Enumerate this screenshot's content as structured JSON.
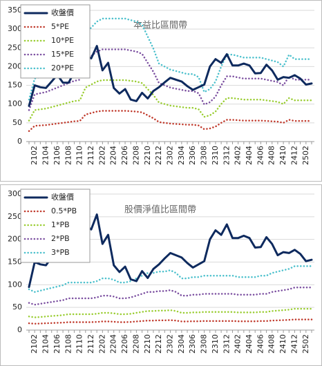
{
  "chart_data": [
    {
      "type": "line",
      "title": "本益比區間帶",
      "categories": [
        null,
        "2102",
        null,
        "2104",
        null,
        "2106",
        null,
        "2108",
        null,
        "2110",
        null,
        "2112",
        null,
        "2202",
        null,
        "2204",
        null,
        "2206",
        null,
        "2208",
        null,
        "2210",
        null,
        "2212",
        null,
        "2302",
        null,
        "2304",
        null,
        "2306",
        null,
        "2308",
        null,
        "2310",
        null,
        "2312",
        null,
        "2402",
        null,
        "2404",
        null,
        "2406",
        null,
        "2408",
        null,
        "2410",
        null,
        "2412",
        null,
        "2502",
        null
      ],
      "ylim": [
        0,
        350
      ],
      "yticks": [
        0,
        50,
        100,
        150,
        200,
        250,
        300,
        350
      ],
      "grid": true,
      "legend": "upper left",
      "series": [
        {
          "name": "收盤價",
          "color": "#0e2a5e",
          "style": "solid",
          "values": [
            95,
            150,
            145,
            143,
            160,
            178,
            157,
            157,
            185,
            195,
            230,
            222,
            255,
            190,
            210,
            143,
            128,
            140,
            112,
            108,
            130,
            115,
            135,
            145,
            158,
            170,
            165,
            160,
            148,
            138,
            145,
            152,
            200,
            220,
            210,
            233,
            203,
            203,
            208,
            203,
            182,
            183,
            205,
            190,
            165,
            172,
            170,
            177,
            168,
            152,
            155
          ]
        },
        {
          "name": "5*PE",
          "color": "#c0392b",
          "style": "dotted",
          "values": [
            28,
            42,
            43,
            44,
            46,
            48,
            50,
            52,
            54,
            55,
            72,
            76,
            80,
            82,
            82,
            82,
            82,
            82,
            81,
            80,
            78,
            70,
            62,
            52,
            50,
            48,
            47,
            46,
            45,
            45,
            43,
            33,
            35,
            40,
            50,
            58,
            58,
            57,
            56,
            56,
            56,
            56,
            55,
            54,
            53,
            50,
            58,
            55,
            55,
            55,
            55
          ]
        },
        {
          "name": "10*PE",
          "color": "#9acd32",
          "style": "dotted",
          "values": [
            56,
            84,
            86,
            88,
            92,
            96,
            100,
            104,
            108,
            110,
            144,
            152,
            160,
            164,
            164,
            164,
            164,
            164,
            162,
            160,
            156,
            140,
            124,
            104,
            100,
            96,
            94,
            92,
            90,
            90,
            86,
            66,
            70,
            80,
            100,
            116,
            116,
            114,
            112,
            112,
            112,
            112,
            110,
            108,
            106,
            100,
            116,
            110,
            110,
            110,
            110
          ]
        },
        {
          "name": "15*PE",
          "color": "#7b4fa0",
          "style": "dotted",
          "values": [
            84,
            126,
            129,
            132,
            138,
            144,
            150,
            156,
            162,
            165,
            216,
            228,
            240,
            246,
            246,
            246,
            246,
            246,
            243,
            240,
            234,
            210,
            186,
            156,
            150,
            144,
            141,
            138,
            135,
            135,
            129,
            99,
            105,
            120,
            150,
            174,
            174,
            171,
            168,
            168,
            168,
            168,
            165,
            162,
            159,
            150,
            174,
            165,
            165,
            165,
            165
          ]
        },
        {
          "name": "20*PE",
          "color": "#4bc0cc",
          "style": "dotted",
          "values": [
            112,
            168,
            172,
            176,
            184,
            192,
            200,
            208,
            216,
            220,
            288,
            304,
            320,
            328,
            328,
            328,
            328,
            328,
            324,
            320,
            312,
            280,
            248,
            208,
            200,
            192,
            188,
            184,
            180,
            180,
            172,
            132,
            140,
            160,
            200,
            232,
            232,
            228,
            224,
            224,
            224,
            224,
            220,
            216,
            212,
            200,
            232,
            220,
            220,
            220,
            220
          ]
        }
      ]
    },
    {
      "type": "line",
      "title": "股價淨值比區間帶",
      "categories": [
        null,
        "2102",
        null,
        "2104",
        null,
        "2106",
        null,
        "2108",
        null,
        "2110",
        null,
        "2112",
        null,
        "2202",
        null,
        "2204",
        null,
        "2206",
        null,
        "2208",
        null,
        "2210",
        null,
        "2212",
        null,
        "2302",
        null,
        "2304",
        null,
        "2306",
        null,
        "2308",
        null,
        "2310",
        null,
        "2312",
        null,
        "2402",
        null,
        "2404",
        null,
        "2406",
        null,
        "2408",
        null,
        "2410",
        null,
        "2412",
        null,
        "2502",
        null
      ],
      "ylim": [
        0,
        300
      ],
      "yticks": [
        0,
        50,
        100,
        150,
        200,
        250,
        300
      ],
      "grid": true,
      "legend": "upper left",
      "series": [
        {
          "name": "收盤價",
          "color": "#0e2a5e",
          "style": "solid",
          "values": [
            95,
            150,
            145,
            143,
            160,
            178,
            157,
            157,
            185,
            195,
            230,
            222,
            255,
            190,
            210,
            143,
            128,
            140,
            112,
            108,
            130,
            115,
            135,
            145,
            158,
            170,
            165,
            160,
            148,
            138,
            145,
            152,
            200,
            220,
            210,
            233,
            203,
            203,
            208,
            203,
            182,
            183,
            205,
            190,
            165,
            172,
            170,
            177,
            168,
            152,
            155
          ]
        },
        {
          "name": "0.5*PB",
          "color": "#c0392b",
          "style": "dotted",
          "values": [
            15,
            14,
            14.5,
            15,
            15.5,
            16,
            16.5,
            17.5,
            17.5,
            17.5,
            17.5,
            17.5,
            18,
            19,
            19,
            18.5,
            17.5,
            17.5,
            18,
            19,
            20,
            21,
            21,
            21.5,
            21.5,
            22,
            21,
            19,
            19,
            19.5,
            19.5,
            20,
            20,
            20,
            20,
            20,
            20,
            19.5,
            19.5,
            19.5,
            19.5,
            20,
            20,
            21,
            21.5,
            22,
            22.5,
            23.5,
            23.5,
            23.5,
            23.5
          ]
        },
        {
          "name": "1*PB",
          "color": "#9acd32",
          "style": "dotted",
          "values": [
            30,
            28,
            29,
            30,
            31,
            32,
            33,
            35,
            35,
            35,
            35,
            35,
            36,
            38,
            38,
            37,
            35,
            35,
            36,
            38,
            40,
            42,
            42,
            43,
            43,
            44,
            42,
            38,
            38,
            39,
            39,
            40,
            40,
            40,
            40,
            40,
            40,
            39,
            39,
            39,
            39,
            40,
            40,
            42,
            43,
            44,
            45,
            47,
            47,
            47,
            47
          ]
        },
        {
          "name": "2*PB",
          "color": "#7b4fa0",
          "style": "dotted",
          "values": [
            60,
            56,
            58,
            60,
            62,
            64,
            66,
            70,
            70,
            70,
            70,
            70,
            72,
            76,
            76,
            74,
            70,
            70,
            72,
            76,
            80,
            84,
            84,
            86,
            86,
            88,
            84,
            76,
            76,
            78,
            78,
            80,
            80,
            80,
            80,
            80,
            80,
            78,
            78,
            78,
            78,
            80,
            80,
            84,
            86,
            88,
            90,
            94,
            94,
            94,
            94
          ]
        },
        {
          "name": "3*PB",
          "color": "#4bc0cc",
          "style": "dotted",
          "values": [
            90,
            84,
            87,
            90,
            93,
            96,
            99,
            105,
            105,
            105,
            105,
            105,
            108,
            114,
            114,
            111,
            105,
            105,
            108,
            114,
            120,
            126,
            126,
            129,
            129,
            132,
            126,
            114,
            114,
            117,
            117,
            120,
            120,
            120,
            120,
            120,
            120,
            117,
            117,
            117,
            117,
            120,
            120,
            126,
            129,
            132,
            135,
            141,
            141,
            141,
            141
          ]
        }
      ]
    }
  ]
}
